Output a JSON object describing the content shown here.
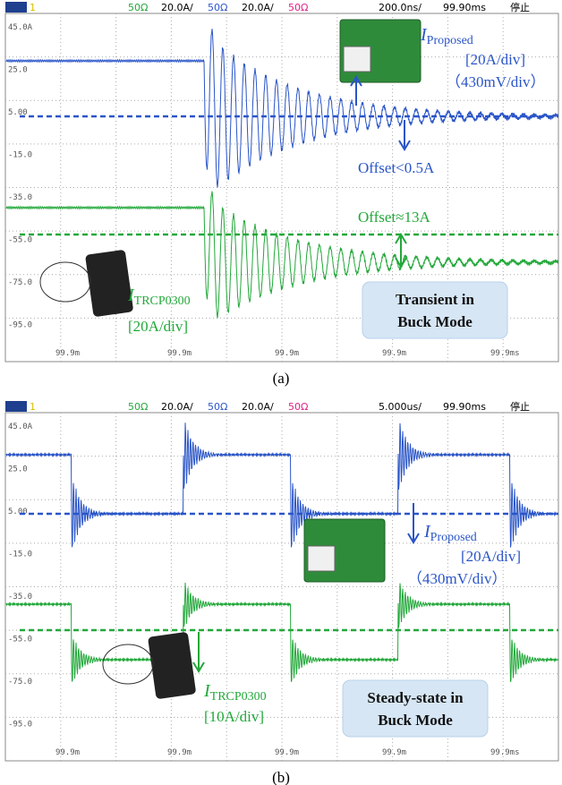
{
  "figure": {
    "panels": [
      {
        "header": {
          "channel": "1",
          "ch2_impedance": "50Ω",
          "ch2_scale": "20.0A/",
          "ch3_impedance": "50Ω",
          "ch3_scale": "20.0A/",
          "ch4_impedance": "50Ω",
          "timebase": "200.0ns/",
          "delay": "99.90ms",
          "status": "停止"
        },
        "y_labels": [
          "45.0A",
          "25.0",
          "5.00",
          "-15.0",
          "-35.0",
          "-55.0",
          "-75.0",
          "-95.0"
        ],
        "x_labels": [
          "99.9m",
          "99.9m",
          "99.9m",
          "99.9m",
          "99.9ms"
        ],
        "proposed": {
          "symbol": "I",
          "subscript": "Proposed",
          "scale": "[20A/div]",
          "sensitivity": "（430mV/div）"
        },
        "offset_proposed": "Offset<0.5A",
        "offset_trcp": "Offset≈13A",
        "trcp": {
          "symbol": "I",
          "subscript": "TRCP0300",
          "scale": "[20A/div]"
        },
        "mode": [
          "Transient in",
          "Buck Mode"
        ],
        "caption": "(a)"
      },
      {
        "header": {
          "channel": "1",
          "ch2_impedance": "50Ω",
          "ch2_scale": "20.0A/",
          "ch3_impedance": "50Ω",
          "ch3_scale": "20.0A/",
          "ch4_impedance": "50Ω",
          "timebase": "5.000us/",
          "delay": "99.90ms",
          "status": "停止"
        },
        "y_labels": [
          "45.0A",
          "25.0",
          "5.00",
          "-15.0",
          "-35.0",
          "-55.0",
          "-75.0",
          "-95.0"
        ],
        "x_labels": [
          "99.9m",
          "99.9m",
          "99.9m",
          "99.9m",
          "99.9ms"
        ],
        "proposed": {
          "symbol": "I",
          "subscript": "Proposed",
          "scale": "[20A/div]",
          "sensitivity": "（430mV/div）"
        },
        "trcp": {
          "symbol": "I",
          "subscript": "TRCP0300",
          "scale": "[10A/div]"
        },
        "mode": [
          "Steady-state in",
          "Buck Mode"
        ],
        "caption": "(b)"
      }
    ]
  }
}
